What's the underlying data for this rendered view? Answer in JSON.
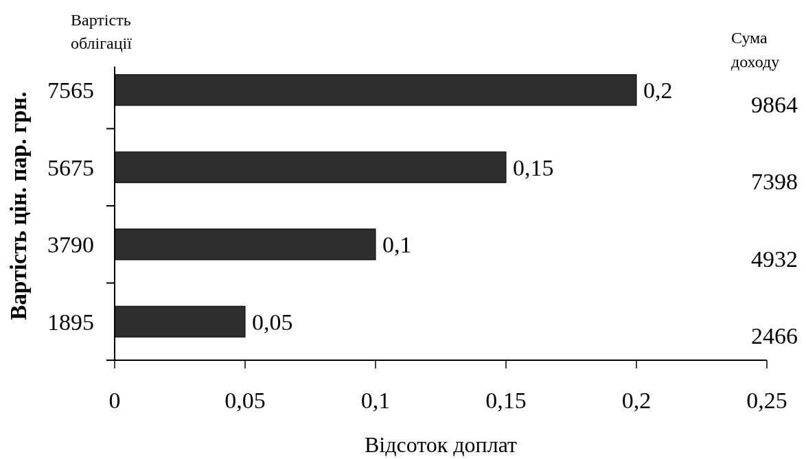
{
  "chart_data": {
    "type": "bar",
    "orientation": "horizontal",
    "categories": [
      "7565",
      "5675",
      "3790",
      "1895"
    ],
    "values": [
      0.2,
      0.15,
      0.1,
      0.05
    ],
    "value_labels": [
      "0,2",
      "0,15",
      "0,1",
      "0,05"
    ],
    "color": "#2e2e2e",
    "xlim": [
      0,
      0.25
    ],
    "xticks": [
      0,
      {
        "value": 0.05,
        "label": "0,05"
      },
      {
        "value": 0.1,
        "label": "0,1"
      },
      {
        "value": 0.15,
        "label": "0,15"
      },
      {
        "value": 0.2,
        "label": "0,2"
      },
      {
        "value": 0.25,
        "label": "0,25"
      }
    ],
    "xlabel": "Відсоток доплат",
    "ylabel": "Вартість цін. пар. грн.",
    "y2label": "Сума доходу",
    "y2_categories": [
      "9864",
      "7398",
      "4932",
      "2466"
    ],
    "annotations": [
      "Вартість облігації"
    ]
  }
}
